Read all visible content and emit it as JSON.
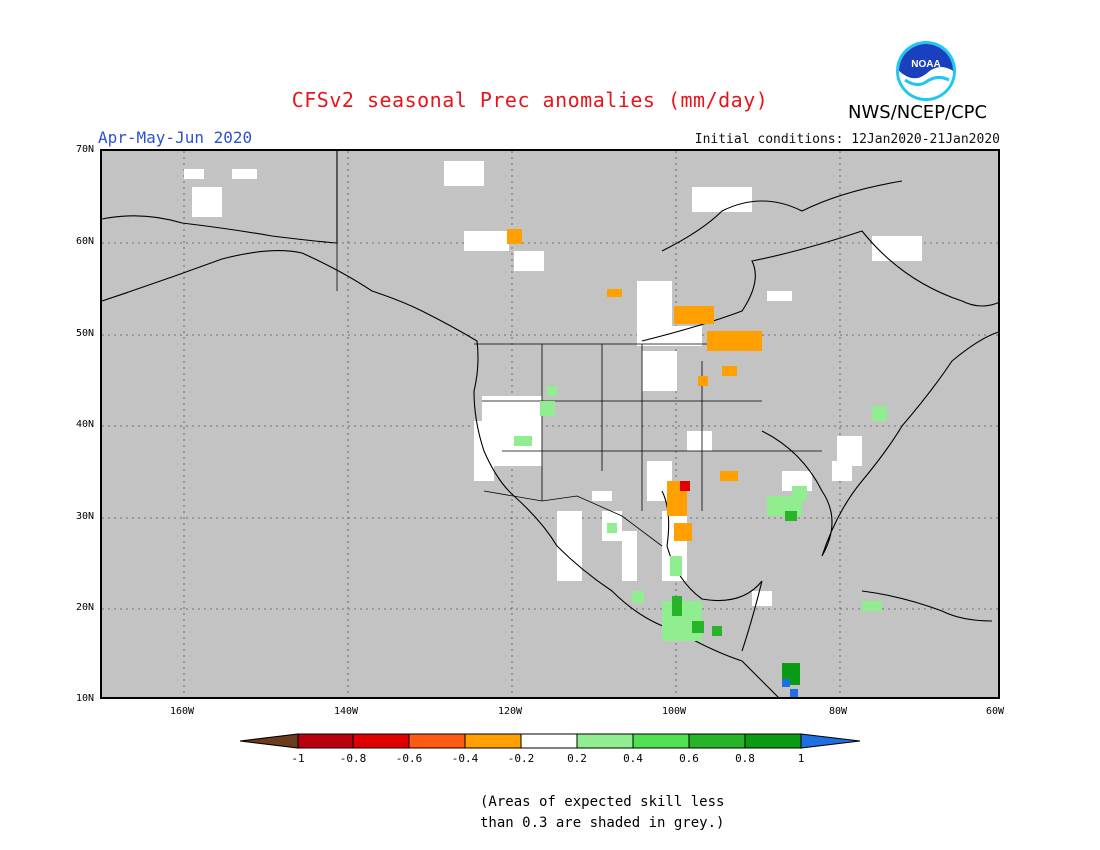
{
  "title": "CFSv2 seasonal Prec anomalies (mm/day)",
  "period": "Apr-May-Jun 2020",
  "initial_conditions": "Initial conditions: 12Jan2020-21Jan2020",
  "agency": "NWS/NCEP/CPC",
  "logo_text": "NOAA",
  "lat_labels": [
    "70N",
    "60N",
    "50N",
    "40N",
    "30N",
    "20N",
    "10N"
  ],
  "lon_labels": [
    "160W",
    "140W",
    "120W",
    "100W",
    "80W",
    "60W"
  ],
  "colorbar": {
    "labels": [
      "-1",
      "-0.8",
      "-0.6",
      "-0.4",
      "-0.2",
      "0.2",
      "0.4",
      "0.6",
      "0.8",
      "1"
    ],
    "colors": [
      "#6b3b1c",
      "#b8000e",
      "#e00000",
      "#ff5a14",
      "#ffa000",
      "#ffffff",
      "#90ee90",
      "#50e050",
      "#28b428",
      "#0a9a14",
      "#1e6fe0"
    ]
  },
  "note_line1": "(Areas of expected skill less",
  "note_line2": "than 0.3 are shaded in grey.)",
  "colors": {
    "land_grey": "#c3c3c3",
    "title_red": "#e8141c",
    "period_blue": "#2a52d6"
  }
}
